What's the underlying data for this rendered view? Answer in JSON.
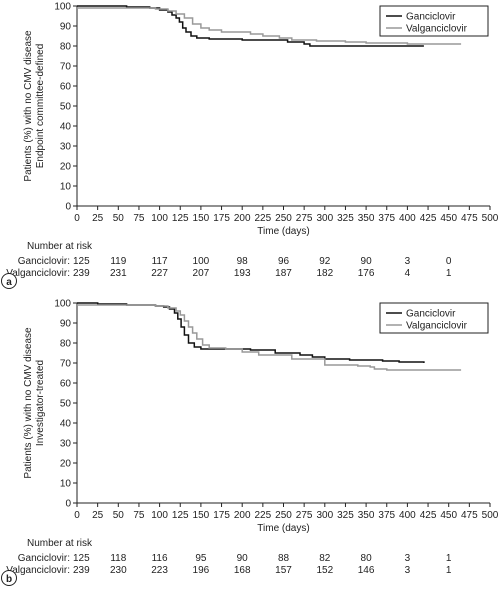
{
  "chart_data": [
    {
      "type": "line",
      "panel_label": "a",
      "ylabel_lines": [
        "Patients (%) with no CMV disease",
        "Endpoint committee-defined"
      ],
      "xlabel": "Time (days)",
      "xlim": [
        0,
        500
      ],
      "ylim": [
        0,
        100
      ],
      "xticks": [
        0,
        25,
        50,
        75,
        100,
        125,
        150,
        175,
        200,
        225,
        250,
        275,
        300,
        325,
        350,
        375,
        400,
        425,
        450,
        475,
        500
      ],
      "yticks": [
        0,
        10,
        20,
        30,
        40,
        50,
        60,
        70,
        80,
        90,
        100
      ],
      "legend_position": "top-right",
      "series": [
        {
          "name": "Ganciclovir",
          "color": "#111111",
          "points": [
            [
              0,
              100
            ],
            [
              18,
              100
            ],
            [
              60,
              99.5
            ],
            [
              88,
              99
            ],
            [
              100,
              98
            ],
            [
              110,
              97
            ],
            [
              115,
              95.5
            ],
            [
              120,
              94
            ],
            [
              124,
              92
            ],
            [
              128,
              89
            ],
            [
              132,
              87
            ],
            [
              138,
              85
            ],
            [
              145,
              84
            ],
            [
              160,
              83.5
            ],
            [
              200,
              83
            ],
            [
              255,
              82
            ],
            [
              275,
              81
            ],
            [
              282,
              80
            ],
            [
              320,
              80
            ],
            [
              420,
              80
            ]
          ]
        },
        {
          "name": "Valganciclovir",
          "color": "#999999",
          "points": [
            [
              0,
              99
            ],
            [
              95,
              98.5
            ],
            [
              110,
              97.5
            ],
            [
              120,
              96
            ],
            [
              130,
              94
            ],
            [
              140,
              91
            ],
            [
              150,
              89
            ],
            [
              160,
              88
            ],
            [
              175,
              87
            ],
            [
              210,
              86
            ],
            [
              225,
              85
            ],
            [
              245,
              84
            ],
            [
              260,
              83
            ],
            [
              290,
              82.5
            ],
            [
              325,
              82
            ],
            [
              350,
              81.5
            ],
            [
              400,
              81
            ],
            [
              465,
              81
            ]
          ]
        }
      ],
      "risk_table": {
        "title": "Number at risk",
        "rows": [
          {
            "label": "Ganciclovir:",
            "values": [
              "125",
              "119",
              "117",
              "100",
              "98",
              "96",
              "92",
              "90",
              "3",
              "0"
            ]
          },
          {
            "label": "Valganciclovir:",
            "values": [
              "239",
              "231",
              "227",
              "207",
              "193",
              "187",
              "182",
              "176",
              "4",
              "1"
            ]
          }
        ]
      }
    },
    {
      "type": "line",
      "panel_label": "b",
      "ylabel_lines": [
        "Patients (%) with no CMV disease",
        "Investigator-treated"
      ],
      "xlabel": "Time (days)",
      "xlim": [
        0,
        500
      ],
      "ylim": [
        0,
        100
      ],
      "xticks": [
        0,
        25,
        50,
        75,
        100,
        125,
        150,
        175,
        200,
        225,
        250,
        275,
        300,
        325,
        350,
        375,
        400,
        425,
        450,
        475,
        500
      ],
      "yticks": [
        0,
        10,
        20,
        30,
        40,
        50,
        60,
        70,
        80,
        90,
        100
      ],
      "legend_position": "top-right",
      "series": [
        {
          "name": "Ganciclovir",
          "color": "#111111",
          "points": [
            [
              0,
              100
            ],
            [
              25,
              99.5
            ],
            [
              60,
              99
            ],
            [
              95,
              98.5
            ],
            [
              105,
              98
            ],
            [
              112,
              97
            ],
            [
              118,
              95
            ],
            [
              122,
              92
            ],
            [
              126,
              88
            ],
            [
              130,
              84
            ],
            [
              135,
              80
            ],
            [
              142,
              78
            ],
            [
              150,
              77
            ],
            [
              175,
              77
            ],
            [
              210,
              76.5
            ],
            [
              240,
              75
            ],
            [
              270,
              74
            ],
            [
              285,
              73
            ],
            [
              300,
              72
            ],
            [
              330,
              71.5
            ],
            [
              370,
              71
            ],
            [
              390,
              70.5
            ],
            [
              420,
              70
            ]
          ]
        },
        {
          "name": "Valganciclovir",
          "color": "#999999",
          "points": [
            [
              0,
              99
            ],
            [
              95,
              98.5
            ],
            [
              110,
              97.5
            ],
            [
              120,
              96
            ],
            [
              125,
              94
            ],
            [
              130,
              91
            ],
            [
              135,
              88
            ],
            [
              140,
              85
            ],
            [
              145,
              82
            ],
            [
              152,
              79
            ],
            [
              160,
              77.5
            ],
            [
              180,
              77
            ],
            [
              200,
              75.5
            ],
            [
              220,
              74
            ],
            [
              260,
              72
            ],
            [
              300,
              69
            ],
            [
              340,
              68.5
            ],
            [
              355,
              68
            ],
            [
              360,
              67
            ],
            [
              375,
              66.5
            ],
            [
              465,
              66.5
            ]
          ]
        }
      ],
      "risk_table": {
        "title": "Number at risk",
        "rows": [
          {
            "label": "Ganciclovir:",
            "values": [
              "125",
              "118",
              "116",
              "95",
              "90",
              "88",
              "82",
              "80",
              "3",
              "1"
            ]
          },
          {
            "label": "Valganciclovir:",
            "values": [
              "239",
              "230",
              "223",
              "196",
              "168",
              "157",
              "152",
              "146",
              "3",
              "1"
            ]
          }
        ]
      }
    }
  ]
}
